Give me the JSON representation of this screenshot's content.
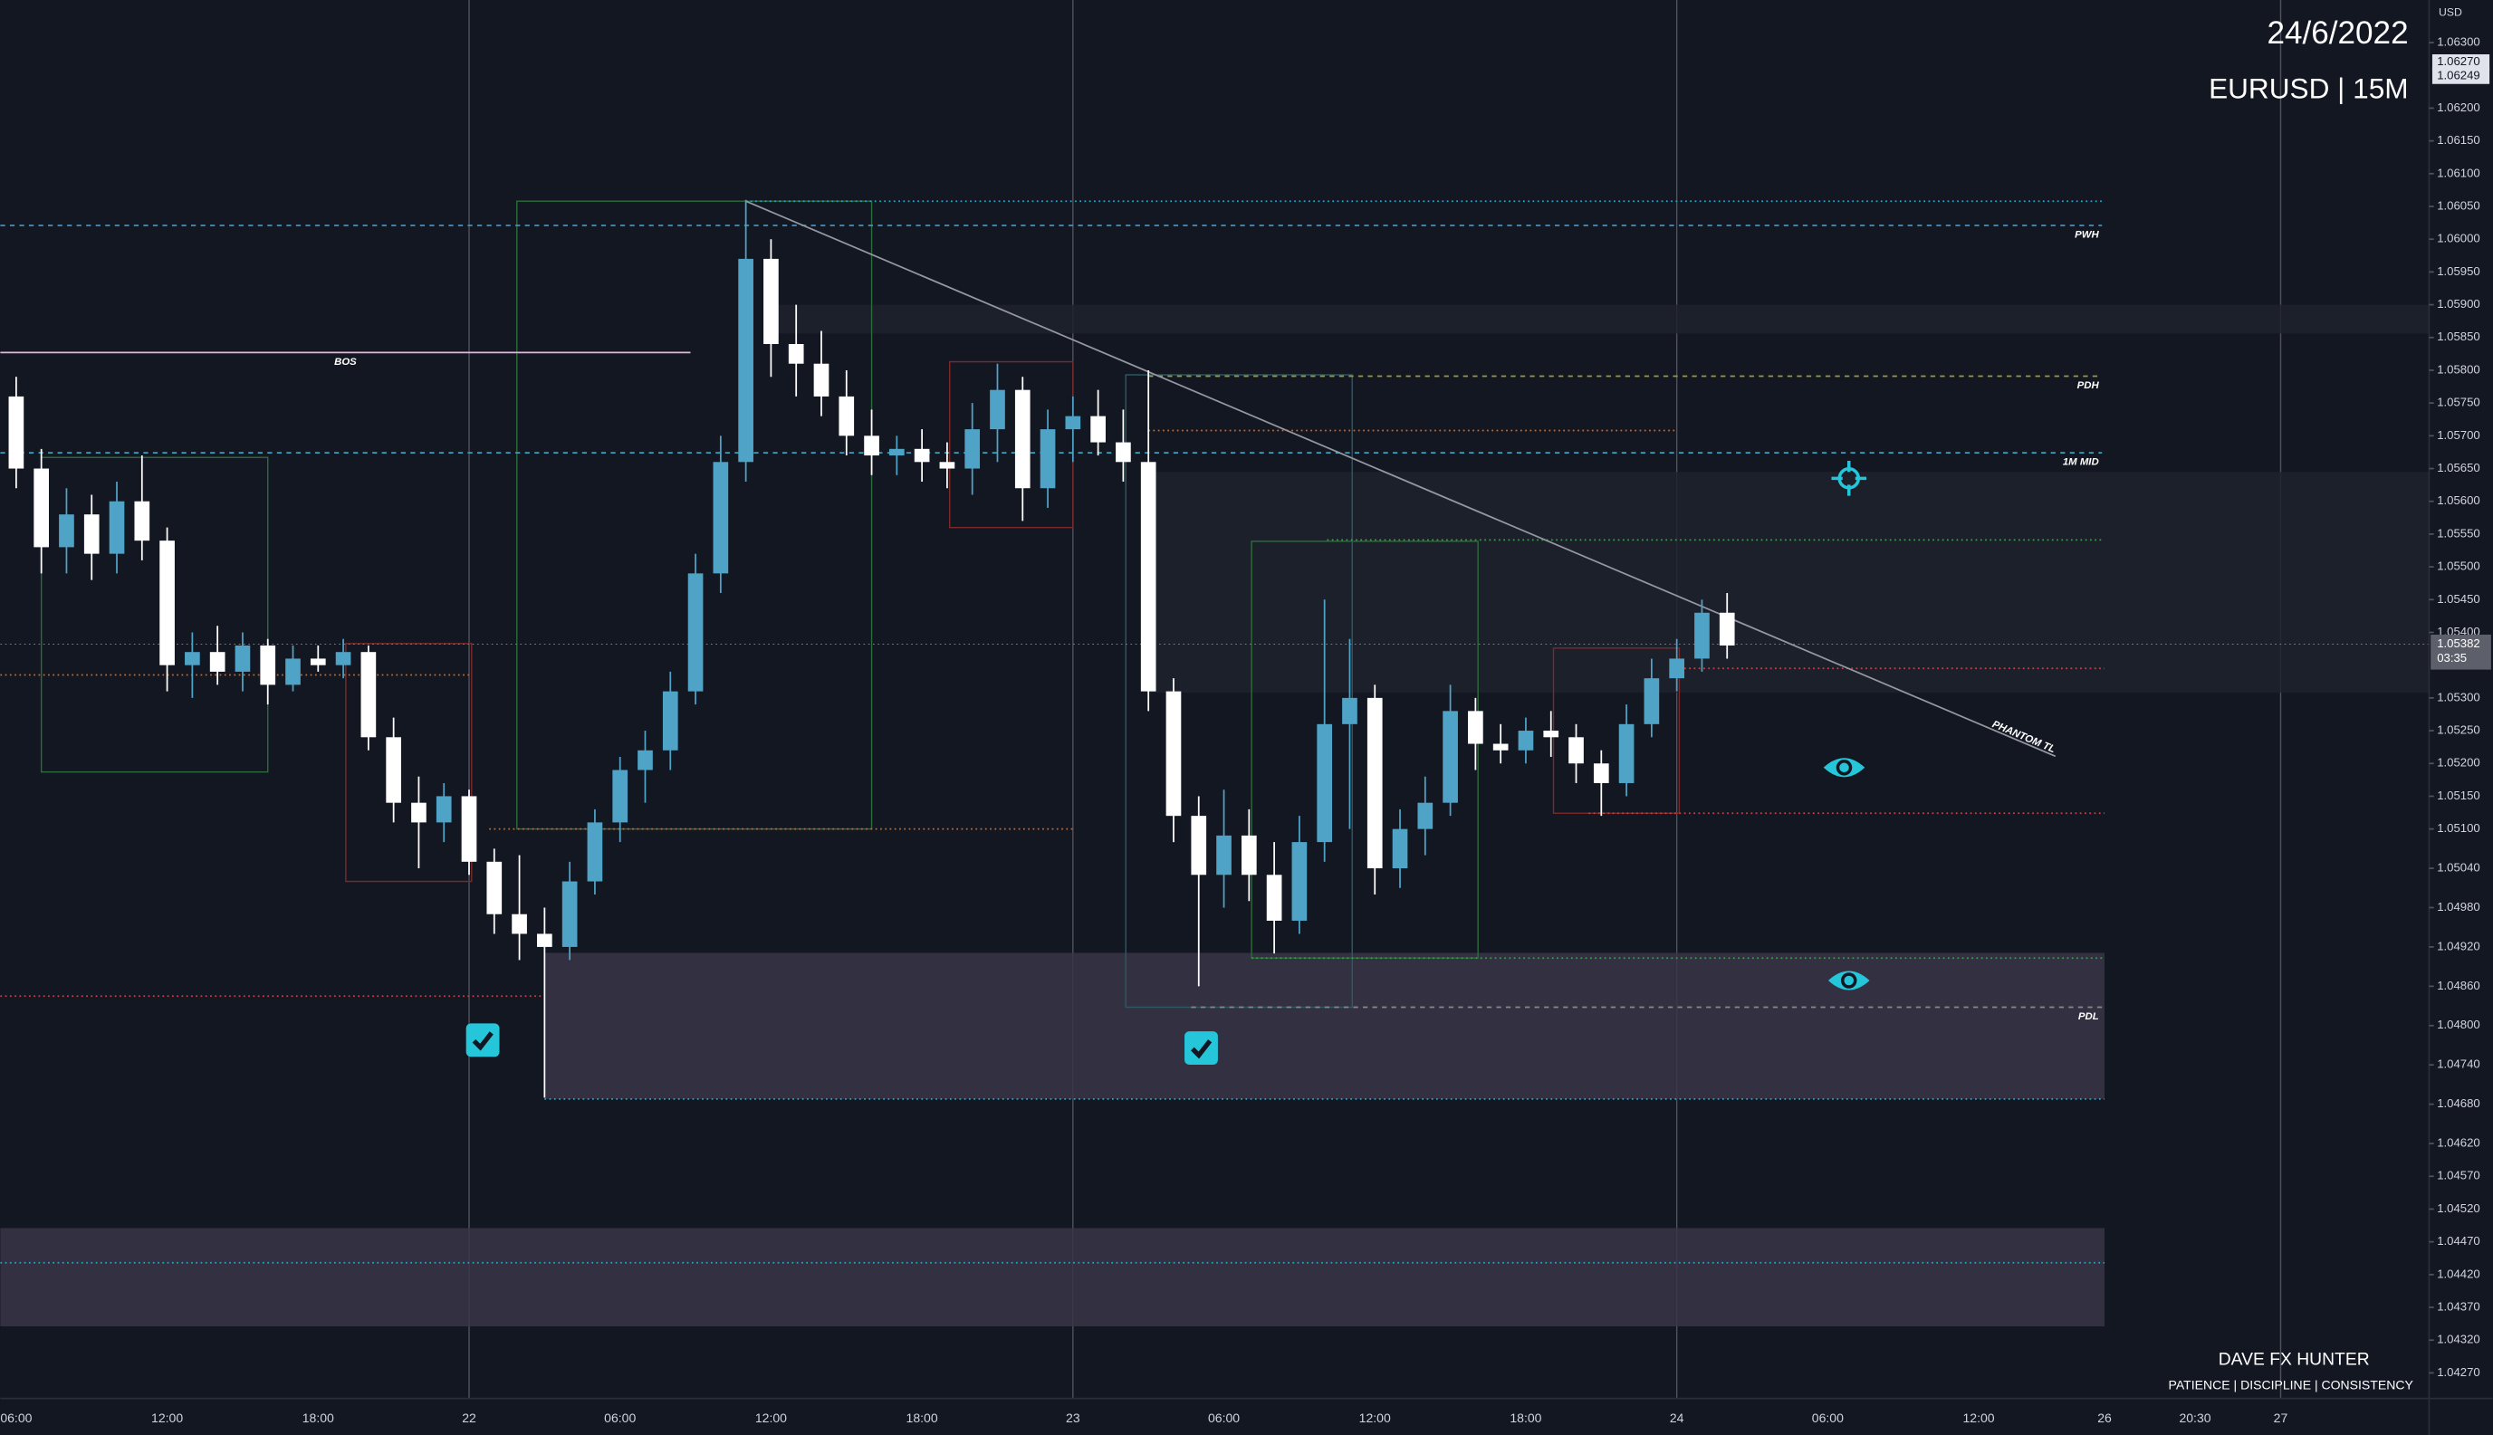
{
  "chart_data": {
    "type": "candlestick",
    "title": "24/6/2022",
    "subtitle": "EURUSD | 15M",
    "currency": "USD",
    "footer": {
      "author": "DAVE FX HUNTER",
      "motto": "PATIENCE | DISCIPLINE | CONSISTENCY"
    },
    "up_color": "#4fa3c7",
    "down_color": "#ffffff",
    "x": [
      6,
      7,
      8,
      9,
      10,
      11,
      12,
      13,
      14,
      15,
      16,
      17,
      18,
      19,
      20,
      21,
      22,
      23,
      24,
      25,
      26,
      27,
      28,
      29,
      30,
      31,
      32,
      33,
      34,
      35,
      36,
      37,
      38,
      39,
      40,
      41,
      42,
      43,
      44,
      45,
      46,
      47,
      48,
      49,
      50,
      51,
      52,
      53,
      54,
      55,
      56,
      57,
      58,
      59,
      60,
      61,
      62,
      63,
      64,
      65,
      66,
      67,
      68,
      69,
      70,
      71,
      72,
      73,
      74
    ],
    "open": [
      1.0576,
      1.0565,
      1.0553,
      1.0558,
      1.0552,
      1.056,
      1.0554,
      1.0535,
      1.0537,
      1.0534,
      1.0538,
      1.0532,
      1.0536,
      1.0535,
      1.0537,
      1.0524,
      1.0514,
      1.0511,
      1.0515,
      1.0505,
      1.0497,
      1.0494,
      1.0492,
      1.0502,
      1.0511,
      1.0519,
      1.0522,
      1.0531,
      1.0549,
      1.0566,
      1.0597,
      1.0584,
      1.0581,
      1.0576,
      1.057,
      1.0567,
      1.0568,
      1.0566,
      1.0565,
      1.0571,
      1.0577,
      1.0562,
      1.0571,
      1.0573,
      1.0569,
      1.0566,
      1.0531,
      1.0512,
      1.0503,
      1.0509,
      1.0503,
      1.0496,
      1.0508,
      1.0526,
      1.053,
      1.0504,
      1.051,
      1.0514,
      1.0528,
      1.0523,
      1.0522,
      1.0525,
      1.0524,
      1.052,
      1.0517,
      1.0526,
      1.0533,
      1.0536,
      1.0543
    ],
    "high": [
      1.0579,
      1.0568,
      1.0562,
      1.0561,
      1.0563,
      1.0567,
      1.0556,
      1.054,
      1.0541,
      1.054,
      1.0539,
      1.0538,
      1.0538,
      1.0539,
      1.0538,
      1.0527,
      1.0518,
      1.0517,
      1.0516,
      1.0507,
      1.0506,
      1.0498,
      1.0505,
      1.0513,
      1.0521,
      1.0525,
      1.0534,
      1.0552,
      1.057,
      1.0606,
      1.06,
      1.059,
      1.0586,
      1.058,
      1.0574,
      1.057,
      1.0571,
      1.0569,
      1.0575,
      1.0581,
      1.0579,
      1.0574,
      1.0576,
      1.0577,
      1.0574,
      1.058,
      1.0533,
      1.0515,
      1.0516,
      1.0513,
      1.0508,
      1.0512,
      1.0545,
      1.0539,
      1.0532,
      1.0513,
      1.0518,
      1.0532,
      1.053,
      1.0526,
      1.0527,
      1.0528,
      1.0526,
      1.0522,
      1.0529,
      1.0536,
      1.0539,
      1.0545,
      1.0546
    ],
    "low": [
      1.0562,
      1.0549,
      1.0549,
      1.0548,
      1.0549,
      1.0551,
      1.0531,
      1.053,
      1.0532,
      1.0531,
      1.0529,
      1.0531,
      1.0534,
      1.0533,
      1.0522,
      1.0511,
      1.0504,
      1.0508,
      1.0503,
      1.0494,
      1.049,
      1.0469,
      1.049,
      1.05,
      1.0508,
      1.0514,
      1.0519,
      1.0529,
      1.0546,
      1.0563,
      1.0579,
      1.0576,
      1.0573,
      1.0567,
      1.0564,
      1.0564,
      1.0563,
      1.0562,
      1.0561,
      1.0566,
      1.0557,
      1.0559,
      1.0566,
      1.0567,
      1.0563,
      1.0528,
      1.0508,
      1.0486,
      1.0498,
      1.0499,
      1.0491,
      1.0494,
      1.0505,
      1.051,
      1.05,
      1.0501,
      1.0506,
      1.0512,
      1.0519,
      1.052,
      1.052,
      1.0521,
      1.0517,
      1.0512,
      1.0515,
      1.0524,
      1.0531,
      1.0534,
      1.0536
    ],
    "close": [
      1.0565,
      1.0553,
      1.0558,
      1.0552,
      1.056,
      1.0554,
      1.0535,
      1.0537,
      1.0534,
      1.0538,
      1.0532,
      1.0536,
      1.0535,
      1.0537,
      1.0524,
      1.0514,
      1.0511,
      1.0515,
      1.0505,
      1.0497,
      1.0494,
      1.0492,
      1.0502,
      1.0511,
      1.0519,
      1.0522,
      1.0531,
      1.0549,
      1.0566,
      1.0597,
      1.0584,
      1.0581,
      1.0576,
      1.057,
      1.0567,
      1.0568,
      1.0566,
      1.0565,
      1.0571,
      1.0577,
      1.0562,
      1.0571,
      1.0573,
      1.0569,
      1.0566,
      1.0531,
      1.0512,
      1.0503,
      1.0509,
      1.0503,
      1.0496,
      1.0508,
      1.0526,
      1.053,
      1.0504,
      1.051,
      1.0514,
      1.0528,
      1.0523,
      1.0522,
      1.0525,
      1.0524,
      1.052,
      1.0517,
      1.0526,
      1.0533,
      1.0536,
      1.0543,
      1.0538
    ],
    "xlim": [
      5.37,
      101.9
    ],
    "ylim": [
      1.04231,
      1.06365
    ],
    "xticks": [
      {
        "value": 6,
        "label": "06:00"
      },
      {
        "value": 12,
        "label": "12:00"
      },
      {
        "value": 18,
        "label": "18:00"
      },
      {
        "value": 24,
        "label": "22"
      },
      {
        "value": 30,
        "label": "06:00"
      },
      {
        "value": 36,
        "label": "12:00"
      },
      {
        "value": 42,
        "label": "18:00"
      },
      {
        "value": 48,
        "label": "23"
      },
      {
        "value": 54,
        "label": "06:00"
      },
      {
        "value": 60,
        "label": "12:00"
      },
      {
        "value": 66,
        "label": "18:00"
      },
      {
        "value": 72,
        "label": "24"
      },
      {
        "value": 78,
        "label": "06:00"
      },
      {
        "value": 84,
        "label": "12:00"
      },
      {
        "value": 89,
        "label": "26"
      },
      {
        "value": 92.6,
        "label": "20:30"
      },
      {
        "value": 96,
        "label": "27"
      }
    ],
    "yticks": [
      {
        "value": 1.063,
        "label": "1.06300"
      },
      {
        "value": 1.062,
        "label": "1.06200"
      },
      {
        "value": 1.0615,
        "label": "1.06150"
      },
      {
        "value": 1.061,
        "label": "1.06100"
      },
      {
        "value": 1.0605,
        "label": "1.06050"
      },
      {
        "value": 1.06,
        "label": "1.06000"
      },
      {
        "value": 1.0595,
        "label": "1.05950"
      },
      {
        "value": 1.059,
        "label": "1.05900"
      },
      {
        "value": 1.0585,
        "label": "1.05850"
      },
      {
        "value": 1.058,
        "label": "1.05800"
      },
      {
        "value": 1.0575,
        "label": "1.05750"
      },
      {
        "value": 1.057,
        "label": "1.05700"
      },
      {
        "value": 1.0565,
        "label": "1.05650"
      },
      {
        "value": 1.056,
        "label": "1.05600"
      },
      {
        "value": 1.0555,
        "label": "1.05550"
      },
      {
        "value": 1.055,
        "label": "1.05500"
      },
      {
        "value": 1.0545,
        "label": "1.05450"
      },
      {
        "value": 1.054,
        "label": "1.05400"
      },
      {
        "value": 1.053,
        "label": "1.05300"
      },
      {
        "value": 1.0525,
        "label": "1.05250"
      },
      {
        "value": 1.052,
        "label": "1.05200"
      },
      {
        "value": 1.0515,
        "label": "1.05150"
      },
      {
        "value": 1.051,
        "label": "1.05100"
      },
      {
        "value": 1.0504,
        "label": "1.05040"
      },
      {
        "value": 1.0498,
        "label": "1.04980"
      },
      {
        "value": 1.0492,
        "label": "1.04920"
      },
      {
        "value": 1.0486,
        "label": "1.04860"
      },
      {
        "value": 1.048,
        "label": "1.04800"
      },
      {
        "value": 1.0474,
        "label": "1.04740"
      },
      {
        "value": 1.0468,
        "label": "1.04680"
      },
      {
        "value": 1.0462,
        "label": "1.04620"
      },
      {
        "value": 1.0457,
        "label": "1.04570"
      },
      {
        "value": 1.0452,
        "label": "1.04520"
      },
      {
        "value": 1.0447,
        "label": "1.04470"
      },
      {
        "value": 1.0442,
        "label": "1.04420"
      },
      {
        "value": 1.0437,
        "label": "1.04370"
      },
      {
        "value": 1.0432,
        "label": "1.04320"
      },
      {
        "value": 1.0427,
        "label": "1.04270"
      }
    ],
    "zones": [
      {
        "y": [
          1.05856,
          1.059
        ],
        "x": [
          36,
          101.9
        ],
        "color": "#1e222d"
      },
      {
        "y": [
          1.05308,
          1.05645
        ],
        "x": [
          51,
          101.9
        ],
        "color": "#1e222d"
      },
      {
        "y": [
          1.04688,
          1.04911
        ],
        "x": [
          27,
          89
        ],
        "color": "#3a3547"
      },
      {
        "y": [
          1.04341,
          1.04491
        ],
        "x": [
          5.37,
          89
        ],
        "color": "#3a3547"
      }
    ],
    "boxes": [
      {
        "y": [
          1.051,
          1.06058
        ],
        "x": [
          25.9,
          40
        ],
        "color": "#2e6b3c"
      },
      {
        "y": [
          1.0502,
          1.05383
        ],
        "x": [
          19.1,
          24.1
        ],
        "color": "#7a2a2a"
      },
      {
        "y": [
          1.05187,
          1.05667
        ],
        "x": [
          7,
          16
        ],
        "color": "#2e6b3c"
      },
      {
        "y": [
          1.0556,
          1.05813
        ],
        "x": [
          43.1,
          48
        ],
        "color": "#7a2a2a"
      },
      {
        "y": [
          1.04903,
          1.05539
        ],
        "x": [
          55.1,
          64.1
        ],
        "color": "#2e6b3c"
      },
      {
        "y": [
          1.05124,
          1.05376
        ],
        "x": [
          67.1,
          72.1
        ],
        "color": "#7a2a2a"
      },
      {
        "y": [
          1.04828,
          1.05793
        ],
        "x": [
          50.1,
          59.1
        ],
        "color": "#2b5a66"
      }
    ],
    "levels": [
      {
        "label": "PWH",
        "value": 1.06021,
        "x": [
          5.37,
          88.9
        ],
        "color": "#4a90b8",
        "dash": "3 3"
      },
      {
        "value": 1.06058,
        "x": [
          35,
          88.9
        ],
        "color": "#26a6c9",
        "dash": "1 2"
      },
      {
        "label": "BOS",
        "value": 1.05827,
        "x": [
          5.37,
          32.8
        ],
        "color": "#e8b4e0",
        "dash": "none"
      },
      {
        "label": "PDH",
        "value": 1.05791,
        "x": [
          51,
          88.9
        ],
        "color": "#9a9a3a",
        "dash": "3 3"
      },
      {
        "label": "1M MID",
        "value": 1.05674,
        "x": [
          5.37,
          88.9
        ],
        "color": "#3aa0c0",
        "dash": "3 3"
      },
      {
        "value": 1.05708,
        "x": [
          51,
          72
        ],
        "color": "#d2691e",
        "dash": "1 2"
      },
      {
        "value": 1.05541,
        "x": [
          58.1,
          88.9
        ],
        "color": "#3aa04a",
        "dash": "1 2"
      },
      {
        "value": 1.05345,
        "x": [
          72.3,
          89
        ],
        "color": "#d04040",
        "dash": "1 2"
      },
      {
        "value": 1.05124,
        "x": [
          68.5,
          89
        ],
        "color": "#d04040",
        "dash": "1 2"
      },
      {
        "value": 1.05335,
        "x": [
          5.37,
          24
        ],
        "color": "#d2691e",
        "dash": "1 2"
      },
      {
        "value": 1.051,
        "x": [
          24.8,
          48
        ],
        "color": "#d2691e",
        "dash": "1 2"
      },
      {
        "value": 1.04845,
        "x": [
          5.37,
          27
        ],
        "color": "#d04040",
        "dash": "1 2"
      },
      {
        "value": 1.04903,
        "x": [
          55.1,
          88.9
        ],
        "color": "#3aa04a",
        "dash": "1 2"
      },
      {
        "label": "PDL",
        "value": 1.04828,
        "x": [
          52.7,
          88.9
        ],
        "color": "#888888",
        "dash": "3 3"
      },
      {
        "value": 1.04688,
        "x": [
          27,
          89
        ],
        "color": "#26a6c9",
        "dash": "1 2"
      },
      {
        "value": 1.04438,
        "x": [
          5.37,
          89
        ],
        "color": "#26a6c9",
        "dash": "1 2"
      }
    ],
    "trendline": {
      "label": "PHANTOM TL",
      "x": [
        35,
        87.05
      ],
      "y": [
        1.06058,
        1.05211
      ],
      "color": "#9598a1"
    },
    "last_price": {
      "value": 1.05382,
      "label": "1.05382",
      "countdown": "03:35"
    },
    "axis_tags": [
      {
        "value": 1.0627,
        "label": "1.06270"
      },
      {
        "value": 1.06249,
        "label": "1.06249"
      }
    ]
  }
}
